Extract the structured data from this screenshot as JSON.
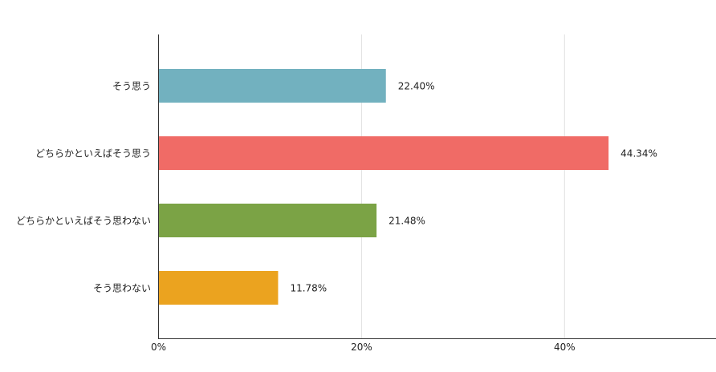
{
  "chart_data": {
    "type": "bar",
    "orientation": "horizontal",
    "title": "",
    "xlabel": "",
    "ylabel": "",
    "categories": [
      "そう思う",
      "どちらかといえばそう思う",
      "どちらかといえばそう思わない",
      "そう思わない"
    ],
    "values": [
      22.4,
      44.34,
      21.48,
      11.78
    ],
    "value_labels": [
      "22.40%",
      "44.34%",
      "21.48%",
      "11.78%"
    ],
    "colors": [
      "#72b1bf",
      "#f06b66",
      "#7ba345",
      "#eba31f"
    ],
    "xlim": [
      0,
      55
    ],
    "xticks": [
      0,
      20,
      40
    ],
    "xtick_labels": [
      "0%",
      "20%",
      "40%"
    ],
    "grid": true,
    "legend": "none"
  }
}
